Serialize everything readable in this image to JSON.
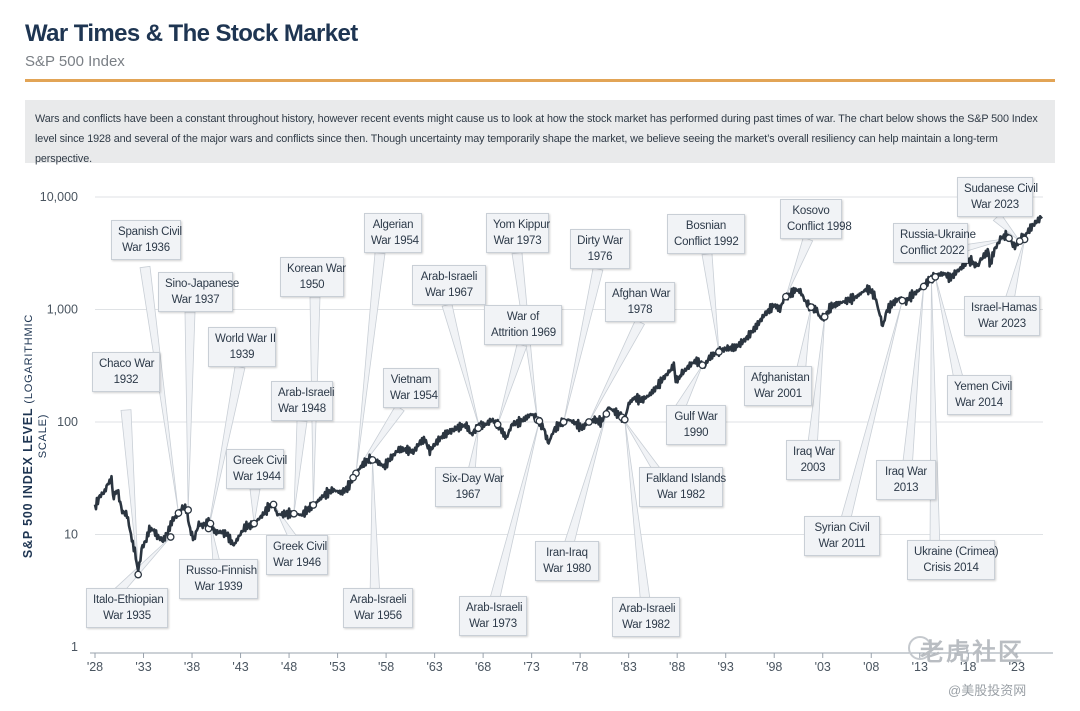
{
  "header": {
    "title": "War Times & The Stock Market",
    "subtitle": "S&P 500 Index",
    "intro": "Wars and conflicts have been a constant throughout history, however recent events might cause us to look at how the stock market has performed during past times of war. The chart below shows the S&P 500 Index level since 1928 and several of the major wars and conflicts since then. Though uncertainty may temporarily shape the market, we believe seeing the market’s overall resiliency can help maintain a long-term perspective."
  },
  "y_axis_label": {
    "main": "S&P 500 INDEX LEVEL",
    "scale": "(LOGARITHMIC SCALE)"
  },
  "watermark": {
    "brand": "老虎社区",
    "handle": "@美股投资网"
  },
  "colors": {
    "title": "#1e3552",
    "accent_rule": "#e2a456",
    "line": "#2b3540",
    "callout_bg": "#f1f3f6"
  },
  "chart_data": {
    "type": "line",
    "title": "War Times & The Stock Market",
    "subtitle": "S&P 500 Index",
    "xlabel": "",
    "ylabel": "S&P 500 INDEX LEVEL (LOGARITHMIC SCALE)",
    "yscale": "log",
    "xlim": [
      1928,
      2024
    ],
    "ylim": [
      1,
      10000
    ],
    "yticks": [
      {
        "value": 1,
        "label": "1"
      },
      {
        "value": 10,
        "label": "10"
      },
      {
        "value": 100,
        "label": "100"
      },
      {
        "value": 1000,
        "label": "1,000"
      },
      {
        "value": 10000,
        "label": "10,000"
      }
    ],
    "xticks": [
      {
        "value": 1928,
        "label": "'28"
      },
      {
        "value": 1933,
        "label": "'33"
      },
      {
        "value": 1938,
        "label": "'38"
      },
      {
        "value": 1943,
        "label": "'43"
      },
      {
        "value": 1948,
        "label": "'48"
      },
      {
        "value": 1953,
        "label": "'53"
      },
      {
        "value": 1958,
        "label": "'58"
      },
      {
        "value": 1963,
        "label": "'63"
      },
      {
        "value": 1968,
        "label": "'68"
      },
      {
        "value": 1973,
        "label": "'73"
      },
      {
        "value": 1978,
        "label": "'78"
      },
      {
        "value": 1983,
        "label": "'83"
      },
      {
        "value": 1988,
        "label": "'88"
      },
      {
        "value": 1993,
        "label": "'93"
      },
      {
        "value": 1998,
        "label": "'98"
      },
      {
        "value": 2003,
        "label": "'03"
      },
      {
        "value": 2008,
        "label": "'08"
      },
      {
        "value": 2013,
        "label": "'13"
      },
      {
        "value": 2018,
        "label": "'18"
      },
      {
        "value": 2023,
        "label": "'23"
      }
    ],
    "series": [
      {
        "name": "S&P 500 Index",
        "points": [
          [
            1928.0,
            17.5
          ],
          [
            1928.5,
            22
          ],
          [
            1929.0,
            24
          ],
          [
            1929.3,
            28
          ],
          [
            1929.7,
            31
          ],
          [
            1929.85,
            22
          ],
          [
            1930.3,
            25
          ],
          [
            1930.8,
            16
          ],
          [
            1931.3,
            15
          ],
          [
            1931.8,
            9
          ],
          [
            1932.2,
            6.5
          ],
          [
            1932.45,
            4.4
          ],
          [
            1932.8,
            7.5
          ],
          [
            1933.3,
            9
          ],
          [
            1933.6,
            11.2
          ],
          [
            1934.0,
            11
          ],
          [
            1934.5,
            9.5
          ],
          [
            1935.0,
            8.8
          ],
          [
            1935.5,
            10.5
          ],
          [
            1936.0,
            13.5
          ],
          [
            1936.5,
            15
          ],
          [
            1937.0,
            17.5
          ],
          [
            1937.4,
            17
          ],
          [
            1937.8,
            11
          ],
          [
            1938.2,
            9
          ],
          [
            1938.7,
            12.5
          ],
          [
            1939.1,
            12
          ],
          [
            1939.7,
            12.8
          ],
          [
            1940.4,
            10.5
          ],
          [
            1941.0,
            10.5
          ],
          [
            1941.6,
            10
          ],
          [
            1942.3,
            8
          ],
          [
            1942.8,
            9.5
          ],
          [
            1943.5,
            11.8
          ],
          [
            1944.0,
            12
          ],
          [
            1944.6,
            13
          ],
          [
            1945.3,
            15
          ],
          [
            1946.0,
            18
          ],
          [
            1946.4,
            18.5
          ],
          [
            1946.8,
            15
          ],
          [
            1947.5,
            15.2
          ],
          [
            1948.5,
            15.5
          ],
          [
            1949.3,
            14.8
          ],
          [
            1950.0,
            17
          ],
          [
            1950.6,
            18.5
          ],
          [
            1951.5,
            22
          ],
          [
            1952.5,
            25
          ],
          [
            1953.4,
            23.5
          ],
          [
            1954.0,
            26
          ],
          [
            1954.5,
            30
          ],
          [
            1955.0,
            36
          ],
          [
            1955.7,
            43
          ],
          [
            1956.3,
            47
          ],
          [
            1957.0,
            45
          ],
          [
            1957.8,
            40
          ],
          [
            1958.5,
            48
          ],
          [
            1959.3,
            57
          ],
          [
            1960.0,
            57
          ],
          [
            1960.8,
            54
          ],
          [
            1961.5,
            66
          ],
          [
            1962.0,
            70
          ],
          [
            1962.5,
            55
          ],
          [
            1963.3,
            68
          ],
          [
            1964.0,
            77
          ],
          [
            1965.0,
            86
          ],
          [
            1965.8,
            92
          ],
          [
            1966.3,
            93
          ],
          [
            1966.8,
            77
          ],
          [
            1967.5,
            92
          ],
          [
            1968.3,
            95
          ],
          [
            1968.9,
            105
          ],
          [
            1969.5,
            95
          ],
          [
            1970.4,
            72
          ],
          [
            1971.0,
            96
          ],
          [
            1971.8,
            100
          ],
          [
            1972.5,
            110
          ],
          [
            1973.0,
            118
          ],
          [
            1973.7,
            104
          ],
          [
            1974.3,
            86
          ],
          [
            1974.75,
            65
          ],
          [
            1975.3,
            85
          ],
          [
            1976.0,
            98
          ],
          [
            1976.8,
            105
          ],
          [
            1977.5,
            98
          ],
          [
            1978.2,
            88
          ],
          [
            1978.8,
            100
          ],
          [
            1979.5,
            105
          ],
          [
            1980.2,
            100
          ],
          [
            1980.9,
            135
          ],
          [
            1981.5,
            125
          ],
          [
            1982.3,
            110
          ],
          [
            1982.6,
            105
          ],
          [
            1983.0,
            145
          ],
          [
            1983.6,
            165
          ],
          [
            1984.3,
            155
          ],
          [
            1985.0,
            170
          ],
          [
            1985.8,
            200
          ],
          [
            1986.5,
            240
          ],
          [
            1987.3,
            290
          ],
          [
            1987.65,
            330
          ],
          [
            1987.85,
            230
          ],
          [
            1988.5,
            270
          ],
          [
            1989.3,
            320
          ],
          [
            1989.9,
            350
          ],
          [
            1990.5,
            330
          ],
          [
            1990.8,
            310
          ],
          [
            1991.3,
            375
          ],
          [
            1992.0,
            410
          ],
          [
            1993.0,
            450
          ],
          [
            1994.0,
            460
          ],
          [
            1995.0,
            540
          ],
          [
            1996.0,
            680
          ],
          [
            1997.0,
            900
          ],
          [
            1998.0,
            1100
          ],
          [
            1998.6,
            1000
          ],
          [
            1999.0,
            1250
          ],
          [
            1999.6,
            1350
          ],
          [
            2000.2,
            1500
          ],
          [
            2000.7,
            1450
          ],
          [
            2001.2,
            1180
          ],
          [
            2001.7,
            1050
          ],
          [
            2002.3,
            1000
          ],
          [
            2002.75,
            820
          ],
          [
            2003.2,
            860
          ],
          [
            2003.8,
            1050
          ],
          [
            2004.5,
            1120
          ],
          [
            2005.5,
            1200
          ],
          [
            2006.5,
            1300
          ],
          [
            2007.5,
            1520
          ],
          [
            2007.9,
            1480
          ],
          [
            2008.4,
            1300
          ],
          [
            2008.9,
            880
          ],
          [
            2009.18,
            700
          ],
          [
            2009.6,
            980
          ],
          [
            2010.3,
            1150
          ],
          [
            2011.0,
            1280
          ],
          [
            2011.6,
            1170
          ],
          [
            2012.0,
            1300
          ],
          [
            2013.0,
            1500
          ],
          [
            2013.9,
            1800
          ],
          [
            2014.8,
            2050
          ],
          [
            2015.6,
            2080
          ],
          [
            2016.1,
            1900
          ],
          [
            2016.9,
            2200
          ],
          [
            2017.9,
            2650
          ],
          [
            2018.3,
            2700
          ],
          [
            2018.95,
            2450
          ],
          [
            2019.5,
            2950
          ],
          [
            2020.1,
            3300
          ],
          [
            2020.2,
            2400
          ],
          [
            2020.7,
            3400
          ],
          [
            2021.3,
            4200
          ],
          [
            2021.95,
            4750
          ],
          [
            2022.4,
            4000
          ],
          [
            2022.8,
            3600
          ],
          [
            2023.2,
            4000
          ],
          [
            2023.6,
            4500
          ],
          [
            2023.8,
            4200
          ],
          [
            2024.0,
            4770
          ],
          [
            2024.5,
            5400
          ],
          [
            2025.0,
            6000
          ],
          [
            2025.6,
            6700
          ]
        ]
      }
    ],
    "events": [
      {
        "label": "Chaco War|1932",
        "year": 1932.45,
        "value": 4.4
      },
      {
        "label": "Spanish Civil|War 1936",
        "year": 1936.6,
        "value": 15.5
      },
      {
        "label": "Sino-Japanese|War 1937",
        "year": 1937.6,
        "value": 16.5
      },
      {
        "label": "World War II|1939",
        "year": 1939.7,
        "value": 11.3
      },
      {
        "label": "Italo-Ethiopian|War 1935",
        "year": 1935.8,
        "value": 9.5
      },
      {
        "label": "Russo-Finnish|War 1939",
        "year": 1939.9,
        "value": 12.5
      },
      {
        "label": "Greek Civil|War 1944",
        "year": 1944.4,
        "value": 12.5
      },
      {
        "label": "Korean War|1950",
        "year": 1950.5,
        "value": 18.3
      },
      {
        "label": "Arab-Israeli|War 1948",
        "year": 1948.5,
        "value": 15.3
      },
      {
        "label": "Greek Civil|War 1946",
        "year": 1946.4,
        "value": 18.5
      },
      {
        "label": "Algerian|War 1954",
        "year": 1954.9,
        "value": 35
      },
      {
        "label": "Vietnam|War 1954",
        "year": 1954.6,
        "value": 32
      },
      {
        "label": "Arab-Israeli|War 1956",
        "year": 1956.6,
        "value": 46
      },
      {
        "label": "Arab-Israeli|War 1967",
        "year": 1967.6,
        "value": 90
      },
      {
        "label": "Six-Day War|1967",
        "year": 1967.5,
        "value": 88
      },
      {
        "label": "Yom Kippur|War 1973",
        "year": 1973.6,
        "value": 104
      },
      {
        "label": "War of|Attrition 1969",
        "year": 1969.5,
        "value": 95
      },
      {
        "label": "Arab-Israeli|War 1973",
        "year": 1973.8,
        "value": 102
      },
      {
        "label": "Dirty War|1976",
        "year": 1976.3,
        "value": 100
      },
      {
        "label": "Afghan War|1978",
        "year": 1978.9,
        "value": 100
      },
      {
        "label": "Iran-Iraq|War 1980",
        "year": 1980.7,
        "value": 118
      },
      {
        "label": "Falkland Islands|War 1982",
        "year": 1982.3,
        "value": 110
      },
      {
        "label": "Arab-Israeli|War 1982",
        "year": 1982.6,
        "value": 105
      },
      {
        "label": "Gulf War|1990",
        "year": 1990.6,
        "value": 320
      },
      {
        "label": "Bosnian|Conflict 1992",
        "year": 1992.3,
        "value": 420
      },
      {
        "label": "Kosovo|Conflict 1998",
        "year": 1999.2,
        "value": 1300
      },
      {
        "label": "Afghanistan|War 2001",
        "year": 2001.8,
        "value": 1050
      },
      {
        "label": "Iraq War|2003",
        "year": 2003.2,
        "value": 860
      },
      {
        "label": "Syrian Civil|War 2011",
        "year": 2011.2,
        "value": 1200
      },
      {
        "label": "Iraq War|2013",
        "year": 2013.4,
        "value": 1600
      },
      {
        "label": "Ukraine (Crimea)|Crisis 2014",
        "year": 2014.2,
        "value": 1850
      },
      {
        "label": "Yemen Civil|War 2014",
        "year": 2014.6,
        "value": 1950
      },
      {
        "label": "Russia-Ukraine|Conflict 2022",
        "year": 2022.2,
        "value": 4300
      },
      {
        "label": "Israel-Hamas|War 2023",
        "year": 2023.8,
        "value": 4200
      },
      {
        "label": "Sudanese Civil|War 2023",
        "year": 2023.3,
        "value": 4050
      }
    ]
  }
}
